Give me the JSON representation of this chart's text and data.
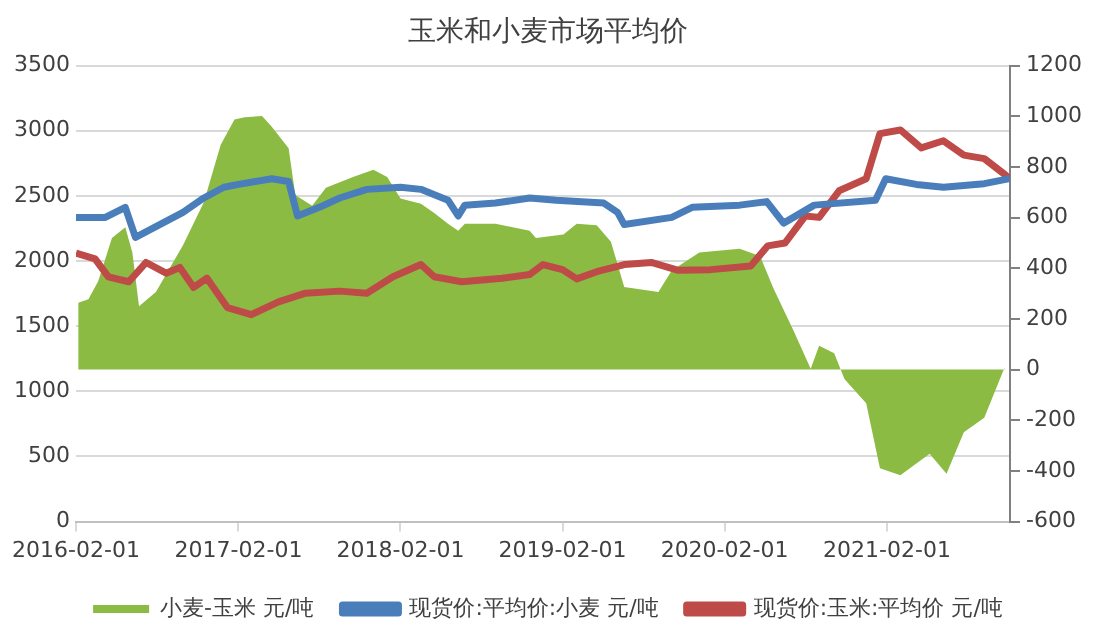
{
  "chart_data": {
    "type": "line",
    "title": "玉米和小麦市场平均价",
    "xlim": [
      "2016-02-01",
      "2021-11-05"
    ],
    "xticks": [
      "2016-02-01",
      "2017-02-01",
      "2018-02-01",
      "2019-02-01",
      "2020-02-01",
      "2021-02-01"
    ],
    "ylim": [
      0,
      3500
    ],
    "yticks": [
      0,
      500,
      1000,
      1500,
      2000,
      2500,
      3000,
      3500
    ],
    "y2lim": [
      -600,
      1200
    ],
    "y2ticks": [
      -600,
      -400,
      -200,
      0,
      200,
      400,
      600,
      800,
      1000,
      1200
    ],
    "grid": "y",
    "legend": "bottom",
    "marker": "none",
    "series": [
      {
        "name": "小麦-玉米 元/吨",
        "type": "area",
        "axis": "y2",
        "color": "#8cbb44",
        "x": [
          "2016-02-06",
          "2016-02-29",
          "2016-03-22",
          "2016-04-22",
          "2016-05-22",
          "2016-06-07",
          "2016-06-22",
          "2016-07-30",
          "2016-09-29",
          "2016-11-15",
          "2016-12-23",
          "2017-01-23",
          "2017-02-15",
          "2017-03-26",
          "2017-04-17",
          "2017-05-25",
          "2017-06-09",
          "2017-07-17",
          "2017-08-17",
          "2017-10-17",
          "2017-12-02",
          "2018-01-02",
          "2018-02-01",
          "2018-03-19",
          "2018-04-18",
          "2018-05-19",
          "2018-06-11",
          "2018-06-26",
          "2018-09-03",
          "2018-11-19",
          "2018-12-03",
          "2019-02-03",
          "2019-03-05",
          "2019-04-19",
          "2019-05-21",
          "2019-06-20",
          "2019-09-05",
          "2019-10-05",
          "2019-12-06",
          "2020-03-06",
          "2020-04-21",
          "2020-05-21",
          "2020-07-06",
          "2020-08-13",
          "2020-09-01",
          "2020-10-05",
          "2020-10-28",
          "2020-12-16",
          "2021-01-16",
          "2021-03-03",
          "2021-05-08",
          "2021-06-15",
          "2021-07-24",
          "2021-09-08",
          "2021-10-24"
        ],
        "values": [
          264,
          278,
          349,
          519,
          562,
          462,
          250,
          306,
          491,
          661,
          888,
          987,
          996,
          1001,
          959,
          874,
          689,
          647,
          718,
          760,
          789,
          760,
          675,
          655,
          618,
          576,
          548,
          576,
          576,
          548,
          519,
          533,
          576,
          570,
          505,
          326,
          306,
          391,
          462,
          477,
          448,
          321,
          151,
          3,
          94,
          65,
          -37,
          -133,
          -389,
          -417,
          -332,
          -411,
          -247,
          -190,
          9
        ]
      },
      {
        "name": "现货价:平均价:小麦 元/吨",
        "type": "line",
        "color": "#4a7ebb",
        "x": [
          "2016-02-01",
          "2016-04-07",
          "2016-05-22",
          "2016-06-14",
          "2016-07-30",
          "2016-09-29",
          "2016-11-15",
          "2016-12-30",
          "2017-02-01",
          "2017-04-17",
          "2017-05-25",
          "2017-06-14",
          "2017-08-02",
          "2017-09-17",
          "2017-11-17",
          "2018-02-01",
          "2018-03-19",
          "2018-05-19",
          "2018-06-11",
          "2018-06-26",
          "2018-09-03",
          "2018-11-19",
          "2019-01-18",
          "2019-05-05",
          "2019-06-05",
          "2019-06-20",
          "2019-10-05",
          "2019-11-20",
          "2020-03-06",
          "2020-05-06",
          "2020-06-13",
          "2020-08-21",
          "2021-01-06",
          "2021-01-29",
          "2021-04-08",
          "2021-06-08",
          "2021-09-08",
          "2021-11-04"
        ],
        "values": [
          2335,
          2335,
          2412,
          2182,
          2264,
          2374,
          2484,
          2566,
          2588,
          2632,
          2610,
          2346,
          2412,
          2484,
          2550,
          2566,
          2550,
          2467,
          2346,
          2429,
          2445,
          2484,
          2467,
          2445,
          2374,
          2280,
          2335,
          2412,
          2429,
          2456,
          2291,
          2429,
          2467,
          2632,
          2588,
          2566,
          2594,
          2632
        ]
      },
      {
        "name": "现货价:玉米:平均价 元/吨",
        "type": "line",
        "color": "#be4b48",
        "x": [
          "2016-02-01",
          "2016-03-15",
          "2016-04-14",
          "2016-05-30",
          "2016-07-08",
          "2016-08-22",
          "2016-09-22",
          "2016-10-23",
          "2016-11-22",
          "2017-01-07",
          "2017-03-02",
          "2017-05-02",
          "2017-07-02",
          "2017-09-17",
          "2017-11-17",
          "2018-01-15",
          "2018-03-19",
          "2018-04-18",
          "2018-06-19",
          "2018-09-18",
          "2018-11-19",
          "2018-12-19",
          "2019-02-01",
          "2019-03-05",
          "2019-04-19",
          "2019-06-20",
          "2019-08-20",
          "2019-10-20",
          "2020-01-01",
          "2020-03-31",
          "2020-05-08",
          "2020-06-16",
          "2020-08-01",
          "2020-09-01",
          "2020-10-16",
          "2020-12-16",
          "2021-01-16",
          "2021-03-03",
          "2021-04-19",
          "2021-06-08",
          "2021-07-24",
          "2021-09-08",
          "2021-10-24",
          "2021-11-04"
        ],
        "values": [
          2061,
          2017,
          1879,
          1841,
          1989,
          1907,
          1951,
          1797,
          1868,
          1643,
          1588,
          1687,
          1753,
          1769,
          1753,
          1879,
          1973,
          1879,
          1841,
          1868,
          1896,
          1973,
          1934,
          1863,
          1918,
          1973,
          1989,
          1929,
          1934,
          1962,
          2116,
          2138,
          2346,
          2335,
          2539,
          2632,
          2978,
          3006,
          2868,
          2923,
          2813,
          2786,
          2665,
          2632
        ]
      }
    ]
  }
}
